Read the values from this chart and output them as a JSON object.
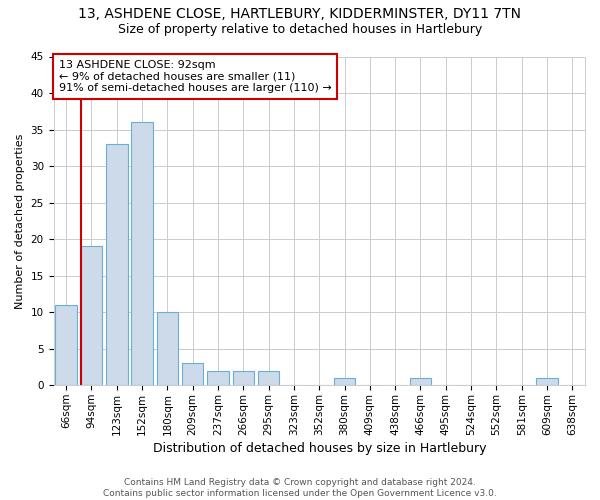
{
  "title": "13, ASHDENE CLOSE, HARTLEBURY, KIDDERMINSTER, DY11 7TN",
  "subtitle": "Size of property relative to detached houses in Hartlebury",
  "xlabel": "Distribution of detached houses by size in Hartlebury",
  "ylabel": "Number of detached properties",
  "bins": [
    "66sqm",
    "94sqm",
    "123sqm",
    "152sqm",
    "180sqm",
    "209sqm",
    "237sqm",
    "266sqm",
    "295sqm",
    "323sqm",
    "352sqm",
    "380sqm",
    "409sqm",
    "438sqm",
    "466sqm",
    "495sqm",
    "524sqm",
    "552sqm",
    "581sqm",
    "609sqm",
    "638sqm"
  ],
  "values": [
    11,
    19,
    33,
    36,
    10,
    3,
    2,
    2,
    2,
    0,
    0,
    1,
    0,
    0,
    1,
    0,
    0,
    0,
    0,
    1,
    0
  ],
  "bar_color": "#ccdaea",
  "bar_edge_color": "#6aaed6",
  "annotation_text": "13 ASHDENE CLOSE: 92sqm\n← 9% of detached houses are smaller (11)\n91% of semi-detached houses are larger (110) →",
  "annotation_box_color": "#ffffff",
  "annotation_box_edge_color": "#cc0000",
  "vline_color": "#cc0000",
  "ylim": [
    0,
    45
  ],
  "yticks": [
    0,
    5,
    10,
    15,
    20,
    25,
    30,
    35,
    40,
    45
  ],
  "footnote": "Contains HM Land Registry data © Crown copyright and database right 2024.\nContains public sector information licensed under the Open Government Licence v3.0.",
  "bg_color": "#ffffff",
  "grid_color": "#cccccc",
  "title_fontsize": 10,
  "subtitle_fontsize": 9,
  "xlabel_fontsize": 9,
  "ylabel_fontsize": 8,
  "tick_fontsize": 7.5,
  "annotation_fontsize": 8,
  "footnote_fontsize": 6.5
}
